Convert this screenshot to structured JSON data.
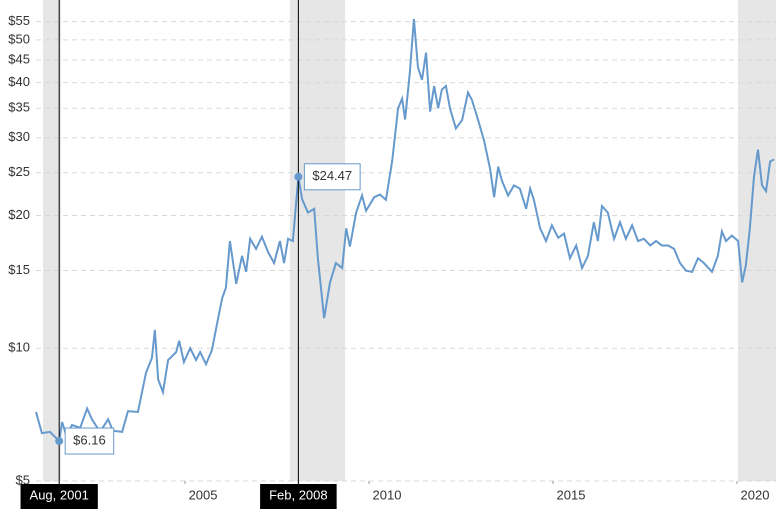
{
  "chart_data": {
    "type": "line",
    "log_y": true,
    "grid": true,
    "xlim": [
      2000.95,
      2021.06
    ],
    "ylim": [
      5,
      60
    ],
    "xticks": [
      2005,
      2010,
      2015,
      2020
    ],
    "yticks": [
      {
        "value": 5,
        "label": "$5"
      },
      {
        "value": 10,
        "label": "$10"
      },
      {
        "value": 15,
        "label": "$15"
      },
      {
        "value": 20,
        "label": "$20"
      },
      {
        "value": 25,
        "label": "$25"
      },
      {
        "value": 30,
        "label": "$30"
      },
      {
        "value": 35,
        "label": "$35"
      },
      {
        "value": 40,
        "label": "$40"
      },
      {
        "value": 45,
        "label": "$45"
      },
      {
        "value": 50,
        "label": "$50"
      },
      {
        "value": 55,
        "label": "$55"
      }
    ],
    "shaded_ranges": [
      [
        2001.14,
        2001.63
      ],
      [
        2007.85,
        2009.35
      ],
      [
        2020.03,
        2021.06
      ]
    ],
    "shade_color": "#e6e6e6",
    "series": [
      {
        "color": "#6699cc",
        "x": [
          2000.95,
          2001.11,
          2001.33,
          2001.58,
          2001.66,
          2001.77,
          2001.93,
          2002.15,
          2002.34,
          2002.47,
          2002.69,
          2002.91,
          2003.04,
          2003.29,
          2003.45,
          2003.72,
          2003.94,
          2004.1,
          2004.18,
          2004.27,
          2004.4,
          2004.54,
          2004.76,
          2004.84,
          2004.97,
          2005.14,
          2005.3,
          2005.41,
          2005.57,
          2005.73,
          2005.9,
          2006.01,
          2006.11,
          2006.22,
          2006.39,
          2006.55,
          2006.66,
          2006.77,
          2006.93,
          2007.09,
          2007.26,
          2007.42,
          2007.58,
          2007.69,
          2007.8,
          2007.93,
          2008.08,
          2008.18,
          2008.34,
          2008.51,
          2008.61,
          2008.78,
          2008.94,
          2009.1,
          2009.27,
          2009.38,
          2009.48,
          2009.65,
          2009.81,
          2009.92,
          2010.14,
          2010.3,
          2010.46,
          2010.63,
          2010.79,
          2010.9,
          2010.98,
          2011.11,
          2011.22,
          2011.33,
          2011.44,
          2011.55,
          2011.66,
          2011.77,
          2011.88,
          2011.98,
          2012.09,
          2012.2,
          2012.36,
          2012.53,
          2012.69,
          2012.8,
          2012.96,
          2013.13,
          2013.29,
          2013.4,
          2013.51,
          2013.61,
          2013.78,
          2013.94,
          2014.1,
          2014.27,
          2014.38,
          2014.48,
          2014.65,
          2014.81,
          2014.97,
          2015.14,
          2015.3,
          2015.46,
          2015.63,
          2015.79,
          2015.95,
          2016.11,
          2016.22,
          2016.33,
          2016.49,
          2016.66,
          2016.82,
          2016.98,
          2017.15,
          2017.31,
          2017.47,
          2017.64,
          2017.8,
          2017.96,
          2018.13,
          2018.29,
          2018.45,
          2018.61,
          2018.78,
          2018.94,
          2019.1,
          2019.32,
          2019.48,
          2019.59,
          2019.7,
          2019.86,
          2020.03,
          2020.14,
          2020.24,
          2020.35,
          2020.46,
          2020.57,
          2020.68,
          2020.79,
          2020.9,
          2021.01
        ],
        "values": [
          7.17,
          6.42,
          6.46,
          6.16,
          6.8,
          6.35,
          6.7,
          6.6,
          7.3,
          6.9,
          6.46,
          6.9,
          6.5,
          6.46,
          7.2,
          7.17,
          8.8,
          9.5,
          11.0,
          8.5,
          7.95,
          9.4,
          9.8,
          10.4,
          9.3,
          10.0,
          9.4,
          9.8,
          9.2,
          9.9,
          11.7,
          13.0,
          13.7,
          17.5,
          14.0,
          16.2,
          14.9,
          17.7,
          16.8,
          17.9,
          16.5,
          15.6,
          17.5,
          15.6,
          17.7,
          17.5,
          24.47,
          21.8,
          20.3,
          20.7,
          16.0,
          11.7,
          14.1,
          15.6,
          15.2,
          18.7,
          17.0,
          20.3,
          22.2,
          20.5,
          22.0,
          22.3,
          21.7,
          26.6,
          35.0,
          36.8,
          33.0,
          42.2,
          55.8,
          43.3,
          40.6,
          46.8,
          34.4,
          39.3,
          35.0,
          38.6,
          39.3,
          35.0,
          31.5,
          32.9,
          38.0,
          36.5,
          33.0,
          29.5,
          25.5,
          22.0,
          25.8,
          24.0,
          22.2,
          23.4,
          23.0,
          20.7,
          23.0,
          21.7,
          18.7,
          17.5,
          19.0,
          17.8,
          18.2,
          16.0,
          17.1,
          15.2,
          16.2,
          19.3,
          17.5,
          21.0,
          20.3,
          17.7,
          19.3,
          17.7,
          19.0,
          17.5,
          17.7,
          17.1,
          17.5,
          17.1,
          17.1,
          16.8,
          15.6,
          15.0,
          14.9,
          16.0,
          15.6,
          14.9,
          16.2,
          18.4,
          17.5,
          18.0,
          17.5,
          14.1,
          15.4,
          18.7,
          24.4,
          28.2,
          23.4,
          22.7,
          26.5,
          26.8
        ]
      }
    ],
    "annotations": [
      {
        "x": 2001.58,
        "value": 6.16,
        "date_label": "Aug, 2001",
        "value_label": "$6.16"
      },
      {
        "x": 2008.08,
        "value": 24.47,
        "date_label": "Feb, 2008",
        "value_label": "$24.47"
      }
    ]
  }
}
